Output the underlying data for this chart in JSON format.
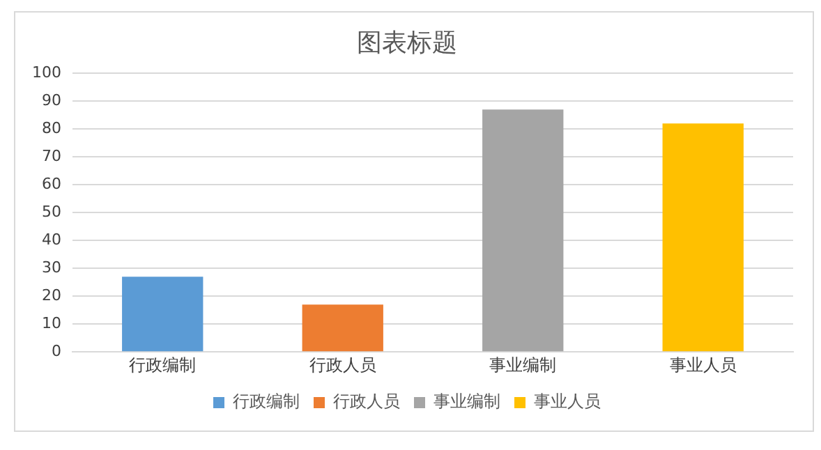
{
  "chart_data": {
    "type": "bar",
    "title": "图表标题",
    "categories": [
      "行政编制",
      "行政人员",
      "事业编制",
      "事业人员"
    ],
    "series": [
      {
        "name": "行政编制",
        "color": "#5b9bd5",
        "values": [
          27,
          null,
          null,
          null
        ]
      },
      {
        "name": "行政人员",
        "color": "#ed7d31",
        "values": [
          null,
          17,
          null,
          null
        ]
      },
      {
        "name": "事业编制",
        "color": "#a5a5a5",
        "values": [
          null,
          null,
          87,
          null
        ]
      },
      {
        "name": "事业人员",
        "color": "#ffc000",
        "values": [
          null,
          null,
          null,
          82
        ]
      }
    ],
    "ylim": [
      0,
      100
    ],
    "yticks": [
      0,
      10,
      20,
      30,
      40,
      50,
      60,
      70,
      80,
      90,
      100
    ],
    "grid": "y",
    "legend": "bottom"
  }
}
